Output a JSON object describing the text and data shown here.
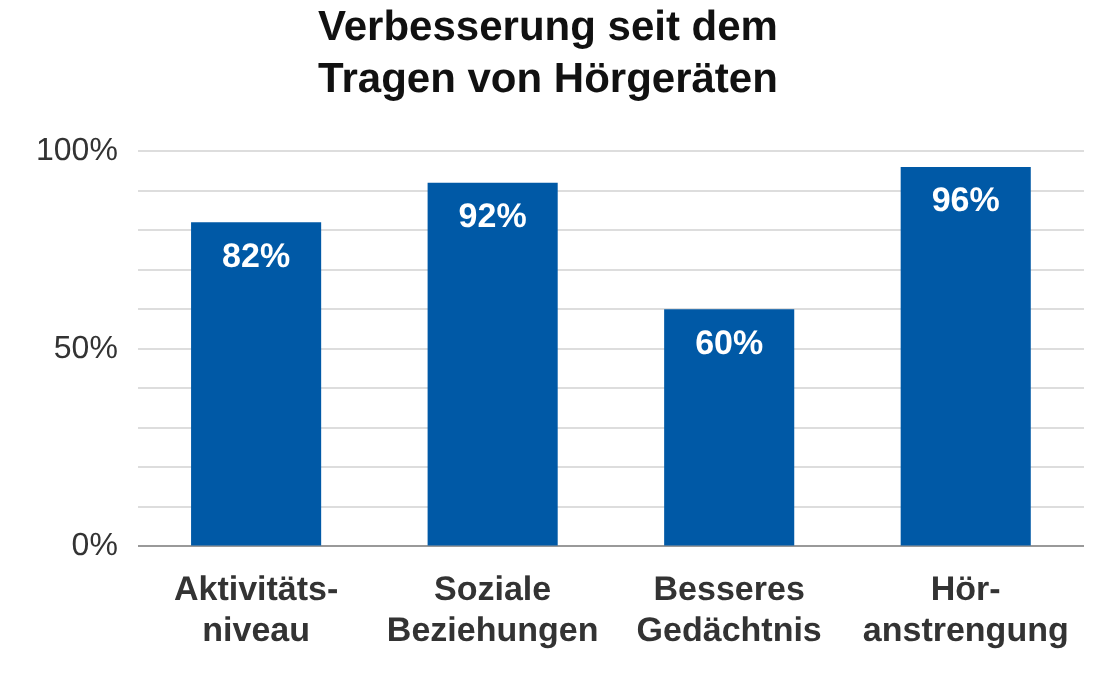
{
  "chart_data": {
    "type": "bar",
    "title": "Verbesserung seit dem Tragen von Hörgeräten",
    "categories": [
      "Aktivitäts- niveau",
      "Soziale Beziehungen",
      "Besseres Gedächtnis",
      "Hör- anstrengung"
    ],
    "values": [
      82,
      92,
      60,
      96
    ],
    "color": "#0059a6",
    "value_labels": [
      "82%",
      "92%",
      "60%",
      "96%"
    ],
    "ylim": [
      0,
      100
    ],
    "yticks": [
      {
        "value": 0,
        "label": "0%"
      },
      {
        "value": 10,
        "label": null
      },
      {
        "value": 20,
        "label": null
      },
      {
        "value": 30,
        "label": null
      },
      {
        "value": 40,
        "label": null
      },
      {
        "value": 50,
        "label": "50%"
      },
      {
        "value": 60,
        "label": null
      },
      {
        "value": 70,
        "label": null
      },
      {
        "value": 80,
        "label": null
      },
      {
        "value": 90,
        "label": null
      },
      {
        "value": 100,
        "label": "100%"
      }
    ],
    "grid": "y",
    "legend": false
  }
}
